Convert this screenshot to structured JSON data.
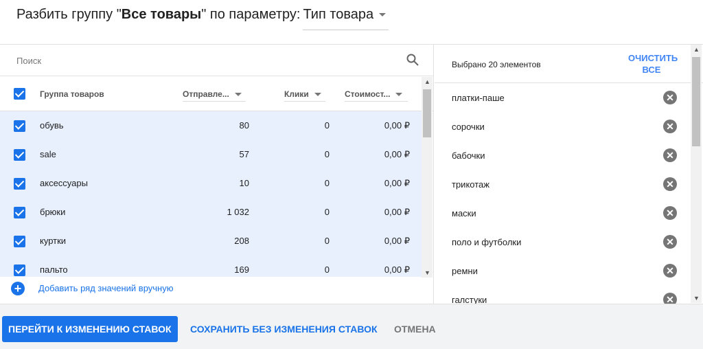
{
  "header": {
    "prefix": "Разбить группу \"",
    "group": "Все товары",
    "suffix": "\" по параметру:",
    "param": "Тип товара"
  },
  "search": {
    "placeholder": "Поиск"
  },
  "table": {
    "columns": [
      "Группа товаров",
      "Отправле...",
      "Клики",
      "Стоимост..."
    ],
    "rows": [
      {
        "name": "обувь",
        "sent": "80",
        "clicks": "0",
        "cost": "0,00 ₽"
      },
      {
        "name": "sale",
        "sent": "57",
        "clicks": "0",
        "cost": "0,00 ₽"
      },
      {
        "name": "аксессуары",
        "sent": "10",
        "clicks": "0",
        "cost": "0,00 ₽"
      },
      {
        "name": "брюки",
        "sent": "1 032",
        "clicks": "0",
        "cost": "0,00 ₽"
      },
      {
        "name": "куртки",
        "sent": "208",
        "clicks": "0",
        "cost": "0,00 ₽"
      },
      {
        "name": "пальто",
        "sent": "169",
        "clicks": "0",
        "cost": "0,00 ₽"
      }
    ]
  },
  "add_row": "Добавить ряд значений вручную",
  "selected": {
    "count_label": "Выбрано 20 элементов",
    "clear_line1": "ОЧИСТИТЬ",
    "clear_line2": "ВСЕ",
    "items": [
      "платки-паше",
      "сорочки",
      "бабочки",
      "трикотаж",
      "маски",
      "поло и футболки",
      "ремни",
      "галстуки"
    ]
  },
  "footer": {
    "primary": "ПЕРЕЙТИ К ИЗМЕНЕНИЮ СТАВОК",
    "save": "СОХРАНИТЬ БЕЗ ИЗМЕНЕНИЯ СТАВОК",
    "cancel": "ОТМЕНА"
  },
  "colors": {
    "accent": "#1a73e8",
    "row_selected": "#e8f0fe"
  }
}
